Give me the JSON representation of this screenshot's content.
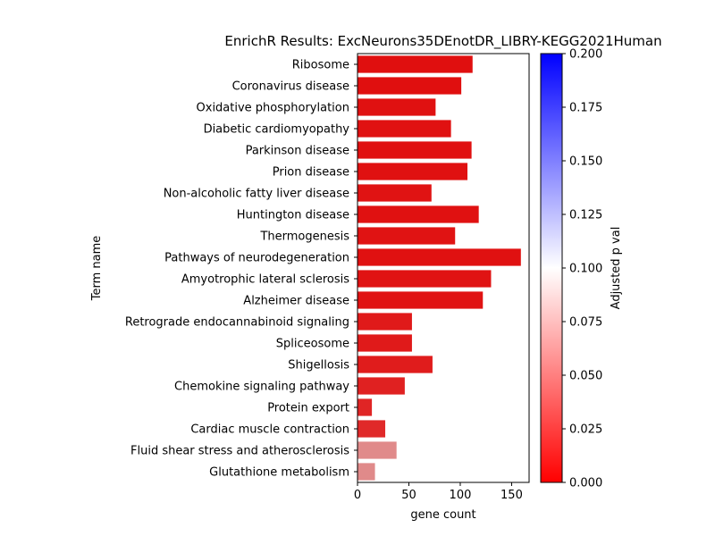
{
  "chart_data": {
    "type": "bar",
    "orientation": "horizontal",
    "title": "EnrichR Results: ExcNeurons35DEnotDR_LIBRY-KEGG2021Human",
    "xlabel": "gene count",
    "ylabel": "Term name",
    "xlim": [
      0,
      167
    ],
    "xticks": [
      "0",
      "50",
      "100",
      "150"
    ],
    "grid": false,
    "categories": [
      "Ribosome",
      "Coronavirus disease",
      "Oxidative phosphorylation",
      "Diabetic cardiomyopathy",
      "Parkinson disease",
      "Prion disease",
      "Non-alcoholic fatty liver disease",
      "Huntington disease",
      "Thermogenesis",
      "Pathways of neurodegeneration",
      "Amyotrophic lateral sclerosis",
      "Alzheimer disease",
      "Retrograde endocannabinoid signaling",
      "Spliceosome",
      "Shigellosis",
      "Chemokine signaling pathway",
      "Protein export",
      "Cardiac muscle contraction",
      "Fluid shear stress and atherosclerosis",
      "Glutathione metabolism"
    ],
    "values": [
      112,
      101,
      76,
      91,
      111,
      107,
      72,
      118,
      95,
      159,
      130,
      122,
      53,
      53,
      73,
      46,
      14,
      27,
      38,
      17
    ],
    "adjusted_p": [
      0.005,
      0.005,
      0.006,
      0.006,
      0.006,
      0.006,
      0.007,
      0.006,
      0.007,
      0.006,
      0.007,
      0.007,
      0.01,
      0.01,
      0.011,
      0.013,
      0.015,
      0.017,
      0.06,
      0.06
    ],
    "colorbar": {
      "label": "Adjusted p val",
      "range": [
        0,
        0.2
      ],
      "ticks": [
        "0.000",
        "0.025",
        "0.050",
        "0.075",
        "0.100",
        "0.125",
        "0.150",
        "0.175",
        "0.200"
      ],
      "colors": [
        "#ff0000",
        "#ffffff",
        "#0000ff"
      ]
    }
  }
}
